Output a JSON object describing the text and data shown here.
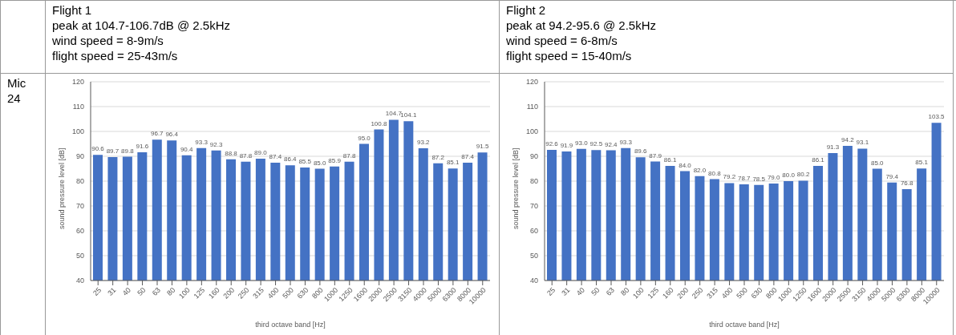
{
  "chart_data": [
    {
      "type": "bar",
      "title": "Flight 1",
      "annotations": [
        "peak at 104.7-106.7dB @ 2.5kHz",
        "wind speed = 8-9m/s",
        "flight speed = 25-43m/s",
        "Mic 24"
      ],
      "categories": [
        "25",
        "31",
        "40",
        "50",
        "63",
        "80",
        "100",
        "125",
        "160",
        "200",
        "250",
        "315",
        "400",
        "500",
        "630",
        "800",
        "1000",
        "1250",
        "1600",
        "2000",
        "2500",
        "3150",
        "4000",
        "5000",
        "6300",
        "8000",
        "10000"
      ],
      "values": [
        90.6,
        89.7,
        89.8,
        91.6,
        96.7,
        96.4,
        90.4,
        93.3,
        92.3,
        88.8,
        87.8,
        89.0,
        87.4,
        86.4,
        85.5,
        85.0,
        85.9,
        87.8,
        95.0,
        100.8,
        104.7,
        104.1,
        93.2,
        87.2,
        85.1,
        87.4,
        91.5
      ],
      "value_labels": [
        "90.6",
        "89.7",
        "89.8",
        "91.6",
        "96.7",
        "96.4",
        "90.4",
        "93.3",
        "92.3",
        "88.8",
        "87.8",
        "89.0",
        "87.4",
        "86.4",
        "85.5",
        "85.0",
        "85.9",
        "87.8",
        "95.0",
        "100.8",
        "104.7",
        "104.1",
        "93.2",
        "87.2",
        "85.1",
        "87.4",
        "91.5"
      ],
      "color": "#4472c4",
      "ylim": [
        40,
        120
      ],
      "yticks": [
        40,
        50,
        60,
        70,
        80,
        90,
        100,
        110,
        120
      ],
      "xlabel": "third octave band [Hz]",
      "ylabel": "sound pressure level [dB]",
      "grid": "y"
    },
    {
      "type": "bar",
      "title": "Flight 2",
      "annotations": [
        "peak at 94.2-95.6 @ 2.5kHz",
        "wind speed = 6-8m/s",
        "flight speed = 15-40m/s"
      ],
      "categories": [
        "25",
        "31",
        "40",
        "50",
        "63",
        "80",
        "100",
        "125",
        "160",
        "200",
        "250",
        "315",
        "400",
        "500",
        "630",
        "800",
        "1000",
        "1250",
        "1600",
        "2000",
        "2500",
        "3150",
        "4000",
        "5000",
        "6300",
        "8000",
        "10000"
      ],
      "values": [
        92.6,
        91.9,
        93.0,
        92.5,
        92.4,
        93.3,
        89.6,
        87.9,
        86.1,
        84.0,
        82.0,
        80.8,
        79.2,
        78.7,
        78.5,
        79.0,
        80.0,
        80.2,
        86.1,
        91.3,
        94.2,
        93.1,
        85.0,
        79.4,
        76.8,
        85.1,
        103.5
      ],
      "value_labels": [
        "92.6",
        "91.9",
        "93.0",
        "92.5",
        "92.4",
        "93.3",
        "89.6",
        "87.9",
        "86.1",
        "84.0",
        "82.0",
        "80.8",
        "79.2",
        "78.7",
        "78.5",
        "79.0",
        "80.0",
        "80.2",
        "86.1",
        "91.3",
        "94.2",
        "93.1",
        "85.0",
        "79.4",
        "76.8",
        "85.1",
        "103.5"
      ],
      "color": "#4472c4",
      "ylim": [
        40,
        120
      ],
      "yticks": [
        40,
        50,
        60,
        70,
        80,
        90,
        100,
        110,
        120
      ],
      "xlabel": "third octave band [Hz]",
      "ylabel": "sound pressure level [dB]",
      "grid": "y"
    }
  ]
}
